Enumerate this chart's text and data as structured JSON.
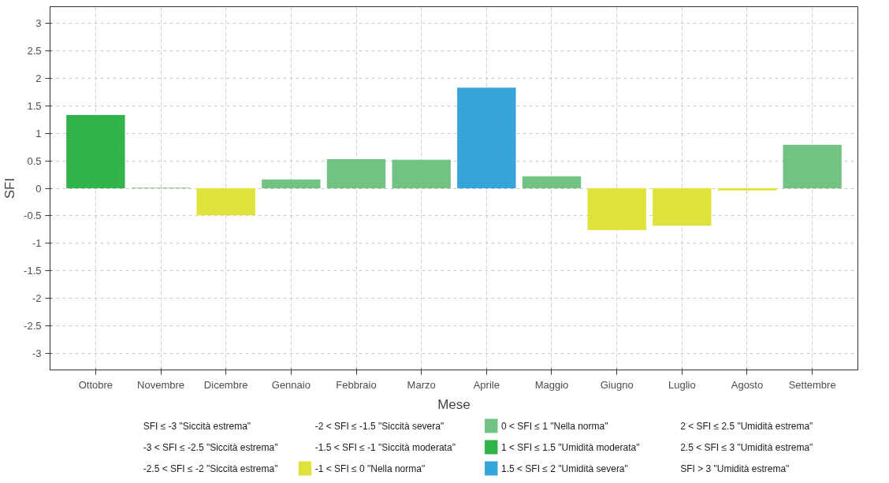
{
  "chart_data": {
    "type": "bar",
    "xlabel": "Mese",
    "ylabel": "SFI",
    "categories": [
      "Ottobre",
      "Novembre",
      "Dicembre",
      "Gennaio",
      "Febbraio",
      "Marzo",
      "Aprile",
      "Maggio",
      "Giugno",
      "Luglio",
      "Agosto",
      "Settembre"
    ],
    "series": [
      {
        "name": "SFI ≤ -3 \"Siccità estrema\"",
        "values": [
          null,
          null,
          null,
          null,
          null,
          null,
          null,
          null,
          null,
          null,
          null,
          null
        ]
      },
      {
        "name": "-3 < SFI ≤ -2.5 \"Siccità estrema\"",
        "values": [
          null,
          null,
          null,
          null,
          null,
          null,
          null,
          null,
          null,
          null,
          null,
          null
        ]
      },
      {
        "name": "-2.5 < SFI ≤ -2 \"Siccità estrema\"",
        "values": [
          null,
          null,
          null,
          null,
          null,
          null,
          null,
          null,
          null,
          null,
          null,
          null
        ]
      },
      {
        "name": "-2 < SFI ≤ -1.5 \"Siccità severa\"",
        "values": [
          null,
          null,
          null,
          null,
          null,
          null,
          null,
          null,
          null,
          null,
          null,
          null
        ]
      },
      {
        "name": "-1.5 < SFI ≤ -1 \"Siccità moderata\"",
        "values": [
          null,
          null,
          null,
          null,
          null,
          null,
          null,
          null,
          null,
          null,
          null,
          null
        ]
      },
      {
        "name": "-1 < SFI ≤ 0 \"Nella norma\"",
        "color": "#dfe23a",
        "values": [
          null,
          null,
          -0.49,
          null,
          null,
          null,
          null,
          null,
          -0.76,
          -0.68,
          -0.04,
          null
        ]
      },
      {
        "name": "0 < SFI ≤ 1 \"Nella norma\"",
        "color": "#70c383",
        "values": [
          null,
          0.01,
          null,
          0.16,
          0.53,
          0.52,
          null,
          0.22,
          null,
          null,
          null,
          0.79
        ]
      },
      {
        "name": "1 < SFI ≤ 1.5 \"Umidità moderata\"",
        "color": "#33b44a",
        "values": [
          1.33,
          null,
          null,
          null,
          null,
          null,
          null,
          null,
          null,
          null,
          null,
          null
        ]
      },
      {
        "name": "1.5 < SFI ≤ 2 \"Umidità severa\"",
        "color": "#35a5dc",
        "values": [
          null,
          null,
          null,
          null,
          null,
          null,
          1.83,
          null,
          null,
          null,
          null,
          null
        ]
      },
      {
        "name": "2 < SFI ≤ 2.5 \"Umidità estrema\"",
        "values": [
          null,
          null,
          null,
          null,
          null,
          null,
          null,
          null,
          null,
          null,
          null,
          null
        ]
      },
      {
        "name": "2.5 < SFI ≤ 3 \"Umidità estrema\"",
        "values": [
          null,
          null,
          null,
          null,
          null,
          null,
          null,
          null,
          null,
          null,
          null,
          null
        ]
      },
      {
        "name": "SFI > 3 \"Umidità estrema\"",
        "values": [
          null,
          null,
          null,
          null,
          null,
          null,
          null,
          null,
          null,
          null,
          null,
          null
        ]
      }
    ],
    "ylim": [
      -3.3,
      3.3
    ],
    "yticks": [
      -3,
      -2.5,
      -2,
      -1.5,
      -1,
      -0.5,
      0,
      0.5,
      1,
      1.5,
      2,
      2.5,
      3
    ],
    "grid": true,
    "legend": "bottom"
  }
}
